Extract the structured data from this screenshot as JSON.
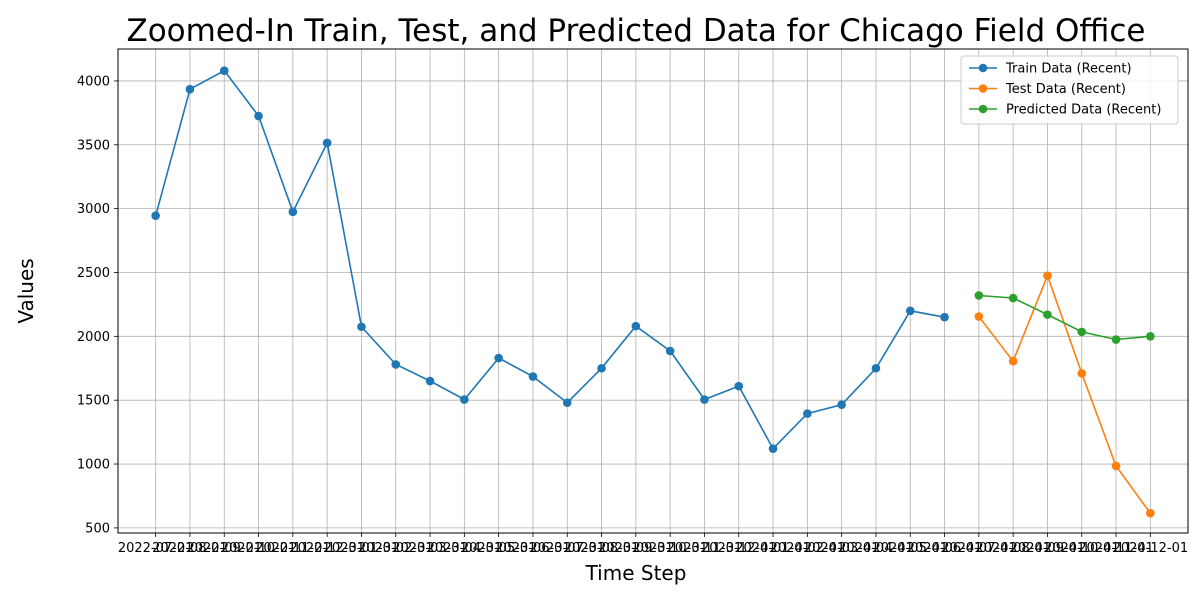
{
  "chart_data": {
    "type": "line",
    "title": "Zoomed-In Train, Test, and Predicted Data for Chicago Field Office",
    "xlabel": "Time Step",
    "ylabel": "Values",
    "ylim": [
      460,
      4250
    ],
    "yticks": [
      500,
      1000,
      1500,
      2000,
      2500,
      3000,
      3500,
      4000
    ],
    "x": [
      "2022-07-01",
      "2022-08-01",
      "2022-09-01",
      "2022-10-01",
      "2022-11-01",
      "2022-12-01",
      "2023-01-01",
      "2023-02-01",
      "2023-03-01",
      "2023-04-01",
      "2023-05-01",
      "2023-06-01",
      "2023-07-01",
      "2023-08-01",
      "2023-09-01",
      "2023-10-01",
      "2023-11-01",
      "2023-12-01",
      "2024-01-01",
      "2024-02-01",
      "2024-03-01",
      "2024-04-01",
      "2024-05-01",
      "2024-06-01",
      "2024-07-01",
      "2024-08-01",
      "2024-09-01",
      "2024-10-01",
      "2024-11-01",
      "2024-12-01"
    ],
    "grid": true,
    "legend_position": "top-right",
    "series": [
      {
        "name": "Train Data (Recent)",
        "color": "#1f77b4",
        "x": [
          "2022-07-01",
          "2022-08-01",
          "2022-09-01",
          "2022-10-01",
          "2022-11-01",
          "2022-12-01",
          "2023-01-01",
          "2023-02-01",
          "2023-03-01",
          "2023-04-01",
          "2023-05-01",
          "2023-06-01",
          "2023-07-01",
          "2023-08-01",
          "2023-09-01",
          "2023-10-01",
          "2023-11-01",
          "2023-12-01",
          "2024-01-01",
          "2024-02-01",
          "2024-03-01",
          "2024-04-01",
          "2024-05-01",
          "2024-06-01"
        ],
        "values": [
          2945,
          3935,
          4080,
          3725,
          2975,
          3515,
          2075,
          1780,
          1650,
          1505,
          1830,
          1685,
          1480,
          1750,
          2080,
          1885,
          1505,
          1610,
          1120,
          1395,
          1465,
          1750,
          2200,
          2150
        ]
      },
      {
        "name": "Test Data (Recent)",
        "color": "#ff7f0e",
        "x": [
          "2024-07-01",
          "2024-08-01",
          "2024-09-01",
          "2024-10-01",
          "2024-11-01",
          "2024-12-01"
        ],
        "values": [
          2155,
          1805,
          2475,
          1710,
          985,
          615
        ]
      },
      {
        "name": "Predicted Data (Recent)",
        "color": "#2ca02c",
        "x": [
          "2024-07-01",
          "2024-08-01",
          "2024-09-01",
          "2024-10-01",
          "2024-11-01",
          "2024-12-01"
        ],
        "values": [
          2320,
          2300,
          2170,
          2035,
          1975,
          2000
        ]
      }
    ]
  }
}
